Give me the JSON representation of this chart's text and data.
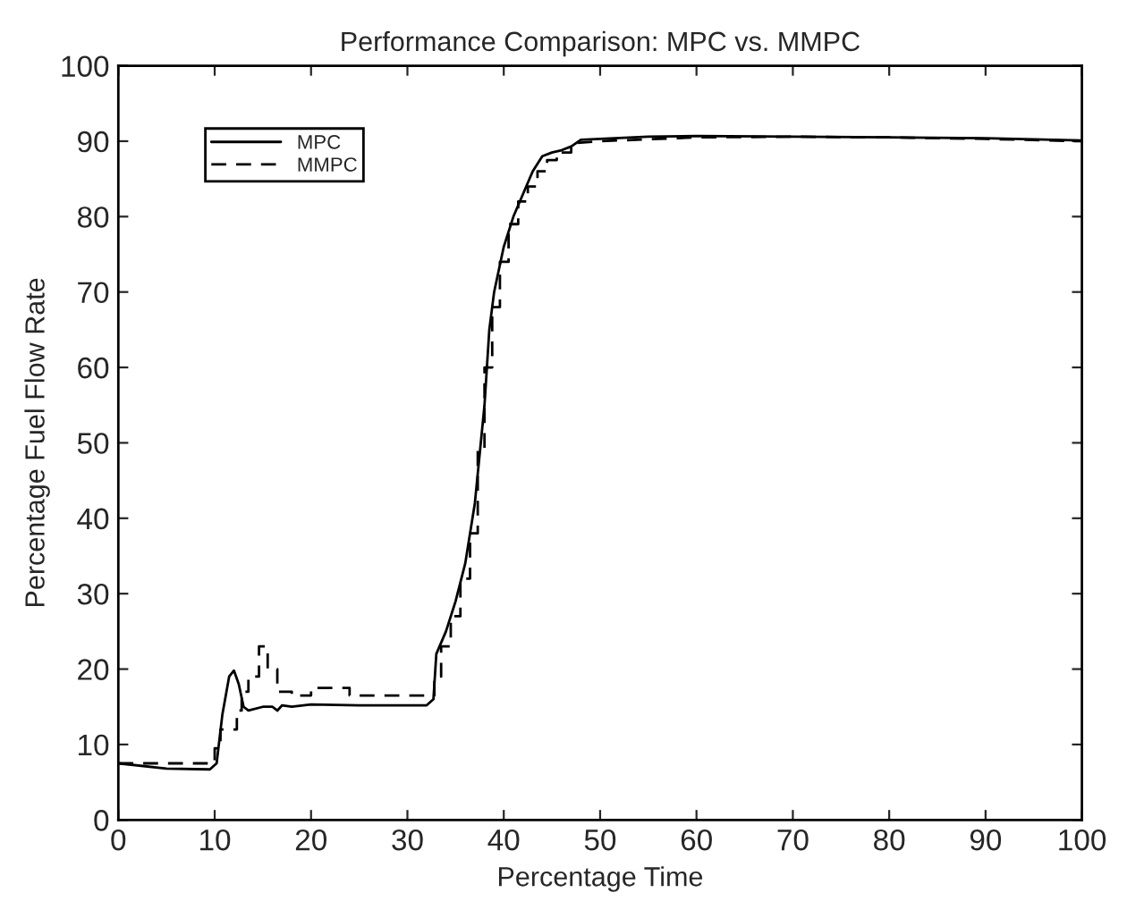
{
  "chart_data": {
    "type": "line",
    "title": "Performance Comparison: MPC vs. MMPC",
    "xlabel": "Percentage Time",
    "ylabel": "Percentage Fuel Flow Rate",
    "xlim": [
      0,
      100
    ],
    "ylim": [
      0,
      100
    ],
    "xticks": [
      0,
      10,
      20,
      30,
      40,
      50,
      60,
      70,
      80,
      90,
      100
    ],
    "yticks": [
      0,
      10,
      20,
      30,
      40,
      50,
      60,
      70,
      80,
      90,
      100
    ],
    "grid": false,
    "legend": "top left",
    "series": [
      {
        "name": "MPC",
        "color": "#000000",
        "line_style": "solid",
        "x": [
          0,
          5,
          9.5,
          10.2,
          10.8,
          11.5,
          12,
          12.5,
          13,
          13.5,
          15,
          16,
          16.5,
          17,
          18,
          20,
          25,
          32,
          32.7,
          33,
          34,
          35,
          36,
          37,
          38,
          38.5,
          39,
          40,
          41,
          42,
          43,
          44,
          45,
          46,
          47,
          48,
          50,
          55,
          60,
          70,
          80,
          90,
          100
        ],
        "values": [
          7.5,
          6.8,
          6.7,
          7.5,
          14,
          19,
          19.8,
          18,
          15,
          14.5,
          15,
          15,
          14.5,
          15.2,
          15,
          15.3,
          15.2,
          15.2,
          16,
          22,
          25,
          29,
          34,
          42,
          55,
          65,
          70,
          76,
          80,
          83,
          86,
          88,
          88.5,
          88.8,
          89.3,
          90.2,
          90.3,
          90.6,
          90.7,
          90.6,
          90.5,
          90.4,
          90.1
        ]
      },
      {
        "name": "MMPC",
        "color": "#000000",
        "line_style": "dashed",
        "x": [
          0,
          10,
          10,
          10.6,
          10.6,
          12.3,
          12.3,
          12.8,
          12.8,
          13.5,
          13.5,
          14.6,
          14.6,
          15.5,
          15.5,
          16.5,
          16.5,
          18,
          18,
          20,
          20,
          24,
          24,
          32.8,
          32.8,
          33.5,
          33.5,
          34.5,
          34.5,
          35.5,
          35.5,
          36.5,
          36.5,
          37.3,
          37.3,
          38,
          38,
          38.8,
          38.8,
          39.6,
          39.6,
          40.5,
          40.5,
          41.5,
          41.5,
          42.5,
          42.5,
          43.5,
          43.5,
          44.5,
          44.5,
          45.5,
          45.5,
          47,
          47,
          50,
          60,
          70,
          80,
          90,
          100
        ],
        "values": [
          7.5,
          7.5,
          9.5,
          9.5,
          12,
          12,
          14.5,
          14.5,
          17,
          17,
          19,
          19,
          23,
          23,
          20,
          20,
          17,
          17,
          16.5,
          16.5,
          17.5,
          17.5,
          16.5,
          16.5,
          19,
          19,
          23,
          23,
          27,
          27,
          32,
          32,
          38,
          38,
          49,
          49,
          60,
          60,
          68,
          68,
          74,
          74,
          79,
          79,
          82,
          82,
          84,
          84,
          86,
          86,
          87.5,
          87.5,
          88.5,
          88.5,
          89.7,
          90,
          90.5,
          90.6,
          90.5,
          90.3,
          90
        ]
      }
    ]
  }
}
